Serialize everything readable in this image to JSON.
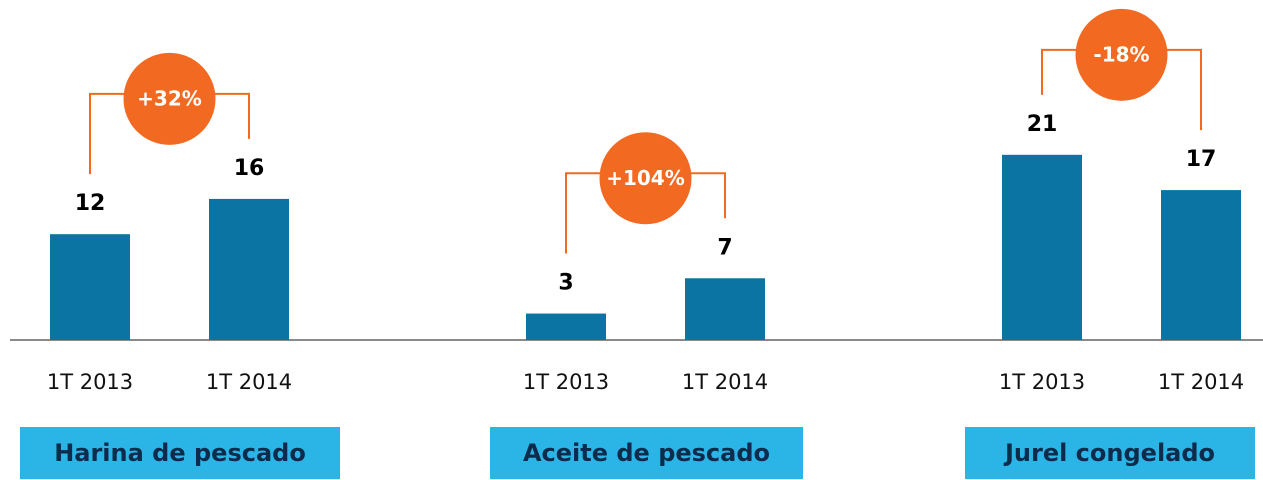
{
  "chart_data": [
    {
      "type": "bar",
      "title": "Harina de pescado",
      "categories": [
        "1T 2013",
        "1T 2014"
      ],
      "values": [
        12,
        16
      ],
      "annotation": "+32%",
      "color": "#0b74a2",
      "ylim": [
        0,
        22
      ]
    },
    {
      "type": "bar",
      "title": "Aceite de pescado",
      "categories": [
        "1T 2013",
        "1T 2014"
      ],
      "values": [
        3,
        7
      ],
      "annotation": "+104%",
      "color": "#0b74a2",
      "ylim": [
        0,
        22
      ]
    },
    {
      "type": "bar",
      "title": "Jurel congelado",
      "categories": [
        "1T 2013",
        "1T 2014"
      ],
      "values": [
        21,
        17
      ],
      "annotation": "-18%",
      "color": "#0b74a2",
      "ylim": [
        0,
        22
      ]
    }
  ]
}
